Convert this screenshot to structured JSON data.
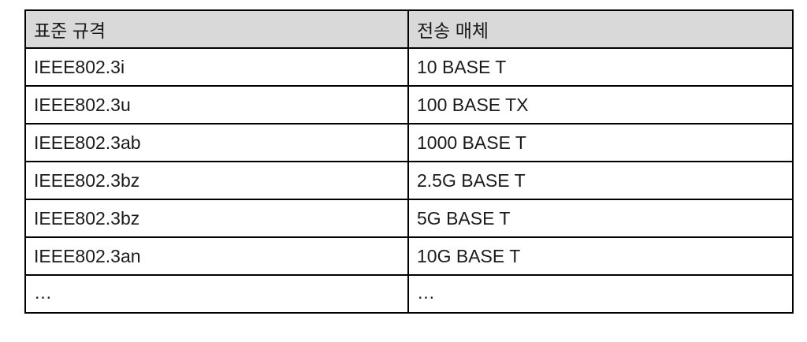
{
  "table": {
    "headers": [
      "표준 규격",
      "전송 매체"
    ],
    "rows": [
      [
        "IEEE802.3i",
        "10 BASE T"
      ],
      [
        "IEEE802.3u",
        "100 BASE TX"
      ],
      [
        "IEEE802.3ab",
        "1000 BASE T"
      ],
      [
        "IEEE802.3bz",
        "2.5G BASE T"
      ],
      [
        "IEEE802.3bz",
        "5G BASE T"
      ],
      [
        "IEEE802.3an",
        "10G BASE T"
      ],
      [
        "…",
        "…"
      ]
    ]
  },
  "colors": {
    "header_background": "#d9d9d9",
    "border": "#000000",
    "text": "#1a1a1a"
  }
}
